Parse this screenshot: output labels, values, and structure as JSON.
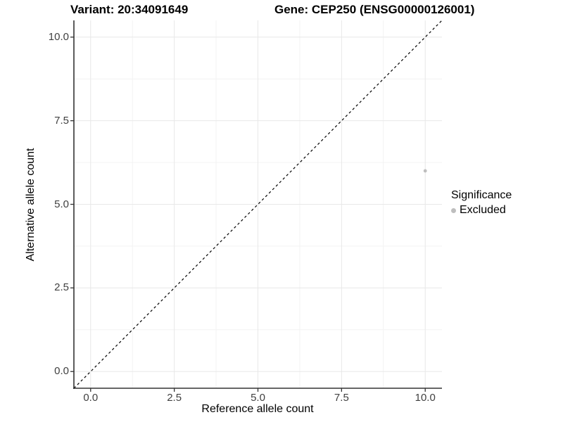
{
  "titles": {
    "variant": "Variant: 20:34091649",
    "gene": "Gene: CEP250 (ENSG00000126001)"
  },
  "legend": {
    "title": "Significance",
    "items": [
      {
        "label": "Excluded",
        "color": "#bebebe"
      }
    ]
  },
  "colors": {
    "background": "#ffffff",
    "grid_major": "#e8e8e8",
    "grid_minor": "#f3f3f3",
    "axis_line": "#333333",
    "tick_text": "#404040",
    "point": "#bebebe",
    "reference_line": "#000000"
  },
  "chart_data": {
    "type": "scatter",
    "title": "Variant: 20:34091649   Gene: CEP250 (ENSG00000126001)",
    "xlabel": "Reference allele count",
    "ylabel": "Alternative allele count",
    "xlim": [
      -0.5,
      10.5
    ],
    "ylim": [
      -0.5,
      10.5
    ],
    "x_ticks": [
      0,
      2.5,
      5,
      7.5,
      10
    ],
    "y_ticks": [
      0,
      2.5,
      5,
      7.5,
      10
    ],
    "x_tick_labels": [
      "0.0",
      "2.5",
      "5.0",
      "7.5",
      "10.0"
    ],
    "y_tick_labels": [
      "0.0",
      "2.5",
      "5.0",
      "7.5",
      "10.0"
    ],
    "grid": "major+minor",
    "legend_position": "right",
    "series": [
      {
        "name": "Excluded",
        "color": "#bebebe",
        "points": [
          [
            10,
            6
          ]
        ]
      }
    ],
    "reference_line": {
      "kind": "identity",
      "linetype": "dashed",
      "color": "#000000",
      "width": 1.2
    }
  }
}
